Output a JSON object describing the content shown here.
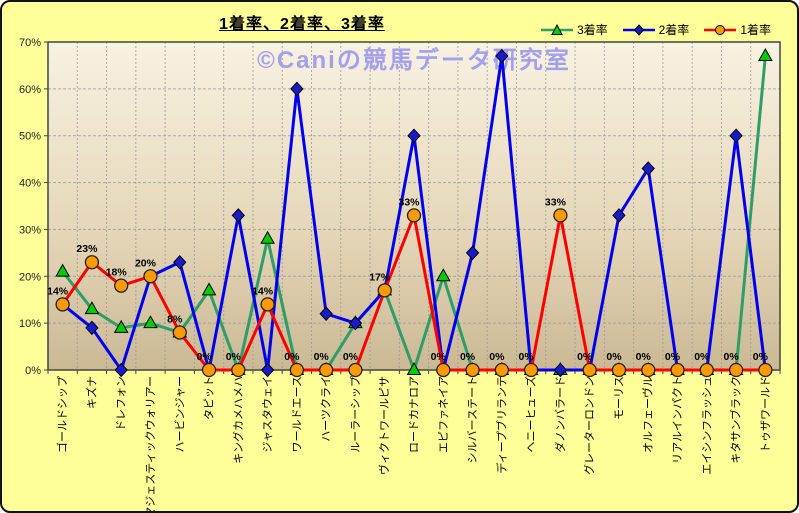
{
  "page": {
    "title": "1着率、2着率、3着率",
    "watermark": "©Caniの競馬データ研究室",
    "background_color": "#FFFF99"
  },
  "legend": {
    "position": "top-right",
    "items": [
      "3着率",
      "2着率",
      "1着率"
    ]
  },
  "chart_data": {
    "type": "line",
    "title": "1着率、2着率、3着率",
    "xlabel": "",
    "ylabel": "",
    "ylim": [
      0,
      70
    ],
    "ytick_step": 10,
    "ytick_labels": [
      "0%",
      "10%",
      "20%",
      "30%",
      "40%",
      "50%",
      "60%",
      "70%"
    ],
    "grid": true,
    "legend_position": "top-right",
    "categories": [
      "ゴールドシップ",
      "キズナ",
      "ドレフォン",
      "マジェスティックウォリアー",
      "ハービンジャー",
      "タピット",
      "キングカメハメハ",
      "ジャスタウェイ",
      "ワールドエース",
      "ハーツクライ",
      "ルーラーシップ",
      "ヴィクトワールピサ",
      "ロードカナロア",
      "エピファネイア",
      "シルバーステート",
      "ディープブリランテ",
      "ヘニーヒューズ",
      "ダノンバラード",
      "グレーターロンドン",
      "モーリス",
      "オルフェーヴル",
      "リアルインパクト",
      "エイシンフラッシュ",
      "キタサンブラック",
      "トゥザワールド"
    ],
    "series": [
      {
        "name": "3着率",
        "marker": "triangle",
        "line_color": "#2E9E66",
        "marker_color": "#00CC00",
        "values": [
          21,
          13,
          9,
          10,
          8,
          17,
          0,
          28,
          0,
          0,
          10,
          17,
          0,
          20,
          0,
          0,
          0,
          0,
          0,
          0,
          0,
          0,
          0,
          0,
          67
        ]
      },
      {
        "name": "2着率",
        "marker": "diamond",
        "line_color": "#0000EE",
        "marker_color": "#1A1ACD",
        "values": [
          14,
          9,
          0,
          20,
          23,
          0,
          33,
          0,
          60,
          12,
          10,
          17,
          50,
          0,
          25,
          67,
          0,
          0,
          0,
          33,
          43,
          0,
          0,
          50,
          0
        ]
      },
      {
        "name": "1着率",
        "marker": "circle",
        "line_color": "#FF0000",
        "marker_color": "#FF9900",
        "values": [
          14,
          23,
          18,
          20,
          8,
          0,
          0,
          14,
          0,
          0,
          0,
          17,
          33,
          0,
          0,
          0,
          0,
          33,
          0,
          0,
          0,
          0,
          0,
          0,
          0
        ],
        "labels": [
          "14%",
          "23%",
          "18%",
          "20%",
          "8%",
          "0%",
          "0%",
          "14%",
          "0%",
          "0%",
          "0%",
          "17%",
          "33%",
          "0%",
          "0%",
          "0%",
          "0%",
          "33%",
          "0%",
          "0%",
          "0%",
          "0%",
          "0%",
          "0%",
          "0%"
        ]
      }
    ],
    "colors": {
      "plot_bg_top": "#F8F2E2",
      "plot_bg_mid": "#E6D8BA",
      "plot_bg_bottom": "#CBB995",
      "gridline": "#999999",
      "axis_border": "#444444",
      "watermark": "#A39FEC",
      "data_label": "#000000"
    }
  }
}
